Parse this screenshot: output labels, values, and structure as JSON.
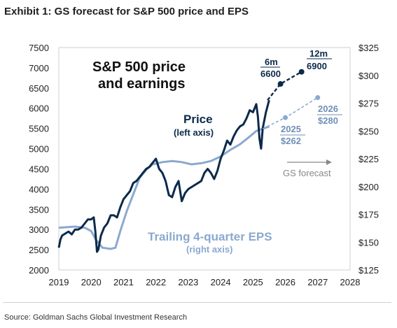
{
  "title": "Exhibit 1: GS forecast for S&P 500 price and EPS",
  "source": "Source: Goldman Sachs Global Investment Research",
  "colors": {
    "price": "#0b2a4a",
    "eps": "#8aa9cf",
    "forecast_text": "#888888",
    "grid": "#cfcfcf"
  },
  "chart_data": {
    "type": "line",
    "inner_title_line1": "S&P 500 price",
    "inner_title_line2": "and earnings",
    "x_ticks": [
      "2019",
      "2020",
      "2021",
      "2022",
      "2023",
      "2024",
      "2025",
      "2026",
      "2027",
      "2028"
    ],
    "xlim": [
      2019,
      2028
    ],
    "y_left": {
      "ticks": [
        "7500",
        "7000",
        "6500",
        "6000",
        "5500",
        "5000",
        "4500",
        "4000",
        "3500",
        "3000",
        "2500",
        "2000"
      ],
      "range": [
        2000,
        7500
      ]
    },
    "y_right": {
      "ticks": [
        "$325",
        "$300",
        "$275",
        "$250",
        "$225",
        "$200",
        "$175",
        "$150",
        "$125"
      ],
      "range": [
        125,
        325
      ]
    },
    "series": [
      {
        "axis": "left",
        "x": [
          2019.0,
          2019.05,
          2019.1,
          2019.2,
          2019.3,
          2019.4,
          2019.5,
          2019.6,
          2019.7,
          2019.8,
          2019.9,
          2020.0,
          2020.08,
          2020.13,
          2020.18,
          2020.22,
          2020.3,
          2020.4,
          2020.5,
          2020.6,
          2020.7,
          2020.8,
          2020.9,
          2021.0,
          2021.1,
          2021.2,
          2021.3,
          2021.4,
          2021.5,
          2021.6,
          2021.7,
          2021.8,
          2021.9,
          2022.0,
          2022.1,
          2022.2,
          2022.3,
          2022.4,
          2022.5,
          2022.6,
          2022.7,
          2022.8,
          2022.9,
          2023.0,
          2023.1,
          2023.2,
          2023.3,
          2023.4,
          2023.5,
          2023.6,
          2023.7,
          2023.8,
          2023.9,
          2024.0,
          2024.1,
          2024.2,
          2024.3,
          2024.4,
          2024.5,
          2024.6,
          2024.7,
          2024.8,
          2024.9,
          2025.0,
          2025.1,
          2025.15,
          2025.2,
          2025.25,
          2025.3,
          2025.4,
          2025.5
        ],
        "values": [
          2550,
          2750,
          2850,
          2900,
          2950,
          2880,
          3000,
          3000,
          3050,
          3150,
          3250,
          3250,
          3300,
          2950,
          2450,
          2500,
          2850,
          3050,
          3150,
          3350,
          3350,
          3300,
          3550,
          3750,
          3850,
          3950,
          4150,
          4200,
          4300,
          4400,
          4500,
          4550,
          4650,
          4750,
          4500,
          4400,
          4200,
          3850,
          3800,
          4050,
          4200,
          3700,
          3900,
          4000,
          4050,
          4100,
          4150,
          4200,
          4400,
          4500,
          4400,
          4250,
          4450,
          4750,
          4950,
          5200,
          5100,
          5300,
          5450,
          5550,
          5600,
          5750,
          5950,
          5900,
          6100,
          5800,
          5250,
          5000,
          5500,
          5900,
          6200
        ]
      },
      {
        "axis": "right",
        "x": [
          2019.0,
          2019.5,
          2019.8,
          2020.0,
          2020.15,
          2020.35,
          2020.6,
          2020.75,
          2020.9,
          2021.1,
          2021.3,
          2021.5,
          2021.7,
          2021.9,
          2022.2,
          2022.5,
          2022.8,
          2023.1,
          2023.4,
          2023.7,
          2024.0,
          2024.3,
          2024.6,
          2024.9,
          2025.1,
          2025.3,
          2025.5
        ],
        "values": [
          163,
          164,
          163,
          160,
          152,
          145,
          144,
          145,
          160,
          178,
          193,
          208,
          215,
          220,
          222,
          223,
          222,
          220,
          221,
          223,
          227,
          233,
          238,
          245,
          250,
          252,
          254
        ]
      }
    ],
    "forecast": {
      "price": {
        "x": [
          2025.45,
          2025.85,
          2026.5
        ],
        "values": [
          6200,
          6600,
          6900
        ]
      },
      "eps": {
        "x": [
          2025.3,
          2026.0,
          2027.0
        ],
        "values": [
          252,
          262,
          280
        ]
      }
    },
    "annotations": {
      "price_label": "Price",
      "price_sub": "(left axis)",
      "eps_label": "Trailing 4-quarter EPS",
      "eps_sub": "(right axis)",
      "fc_6m_label": "6m",
      "fc_6m_value": "6600",
      "fc_12m_label": "12m",
      "fc_12m_value": "6900",
      "fc_2025_label": "2025",
      "fc_2025_value": "$262",
      "fc_2026_label": "2026",
      "fc_2026_value": "$280",
      "forecast_text": "GS forecast"
    }
  }
}
